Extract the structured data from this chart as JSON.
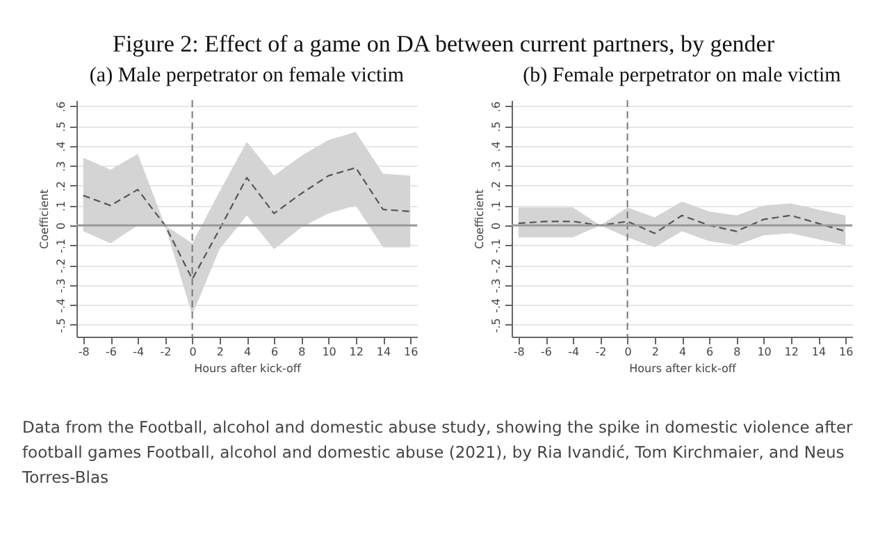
{
  "chart_data": [
    {
      "type": "line",
      "title": "(a) Male perpetrator on female victim",
      "xlabel": "Hours after kick-off",
      "ylabel": "Coefficient",
      "annotations": [
        "Figure 2: Effect of a game on DA between current partners, by gender",
        "Data from the Football, alcohol and domestic abuse study, showing the spike in domestic violence after football games Football, alcohol and domestic abuse (2021), by Ria Ivandić, Tom Kirchmaier, and Neus Torres-Blas"
      ],
      "x": [
        -8,
        -6,
        -4,
        -2,
        0,
        2,
        4,
        6,
        8,
        10,
        12,
        14,
        16
      ],
      "series": [
        {
          "color": "#555555",
          "values": [
            0.15,
            0.1,
            0.18,
            0,
            -0.27,
            -0.02,
            0.24,
            0.06,
            0.16,
            0.25,
            0.29,
            0.08,
            0.07
          ],
          "lower": [
            -0.03,
            -0.09,
            0,
            0,
            -0.45,
            -0.12,
            0.05,
            -0.12,
            -0.01,
            0.06,
            0.1,
            -0.11,
            -0.11
          ],
          "upper": [
            0.34,
            0.28,
            0.36,
            0,
            -0.09,
            0.17,
            0.42,
            0.25,
            0.35,
            0.43,
            0.47,
            0.26,
            0.25
          ]
        }
      ],
      "xlim": [
        -8.5,
        16.5
      ],
      "ylim": [
        -0.56,
        0.63
      ],
      "xticks": [
        -8,
        -6,
        -4,
        -2,
        0,
        2,
        4,
        6,
        8,
        10,
        12,
        14,
        16
      ],
      "yticks": [
        {
          "value": -0.5,
          "label": "-.5"
        },
        {
          "value": -0.4,
          "label": "-.4"
        },
        {
          "value": -0.3,
          "label": "-.3"
        },
        {
          "value": -0.2,
          "label": "-.2"
        },
        {
          "value": -0.1,
          "label": "-.1"
        },
        0,
        {
          "value": 0.1,
          "label": ".1"
        },
        {
          "value": 0.2,
          "label": ".2"
        },
        {
          "value": 0.3,
          "label": ".3"
        },
        {
          "value": 0.4,
          "label": ".4"
        },
        {
          "value": 0.5,
          "label": ".5"
        },
        {
          "value": 0.6,
          "label": ".6"
        }
      ],
      "ref_lines": [
        {
          "axis": "x",
          "value": 0,
          "line_style": "dashed",
          "color": "#777777"
        },
        {
          "axis": "y",
          "value": 0,
          "line_style": "solid",
          "color": "#999999"
        }
      ],
      "grid": "y",
      "line_style": "dashed"
    },
    {
      "type": "line",
      "title": "(b) Female perpetrator on male victim",
      "xlabel": "Hours after kick-off",
      "ylabel": "Coefficient",
      "x": [
        -8,
        -6,
        -4,
        -2,
        0,
        2,
        4,
        6,
        8,
        10,
        12,
        14,
        16
      ],
      "series": [
        {
          "color": "#555555",
          "values": [
            0.01,
            0.02,
            0.02,
            0,
            0.02,
            -0.04,
            0.05,
            0,
            -0.03,
            0.03,
            0.05,
            0.01,
            -0.03
          ],
          "lower": [
            -0.06,
            -0.06,
            -0.06,
            0,
            -0.06,
            -0.11,
            -0.03,
            -0.08,
            -0.1,
            -0.05,
            -0.04,
            -0.07,
            -0.1
          ],
          "upper": [
            0.09,
            0.09,
            0.09,
            0,
            0.09,
            0.04,
            0.12,
            0.07,
            0.05,
            0.1,
            0.11,
            0.08,
            0.05
          ]
        }
      ],
      "xlim": [
        -8.5,
        16.5
      ],
      "ylim": [
        -0.56,
        0.63
      ],
      "xticks": [
        -8,
        -6,
        -4,
        -2,
        0,
        2,
        4,
        6,
        8,
        10,
        12,
        14,
        16
      ],
      "yticks": [
        {
          "value": -0.5,
          "label": "-.5"
        },
        {
          "value": -0.4,
          "label": "-.4"
        },
        {
          "value": -0.3,
          "label": "-.3"
        },
        {
          "value": -0.2,
          "label": "-.2"
        },
        {
          "value": -0.1,
          "label": "-.1"
        },
        0,
        {
          "value": 0.1,
          "label": ".1"
        },
        {
          "value": 0.2,
          "label": ".2"
        },
        {
          "value": 0.3,
          "label": ".3"
        },
        {
          "value": 0.4,
          "label": ".4"
        },
        {
          "value": 0.5,
          "label": ".5"
        },
        {
          "value": 0.6,
          "label": ".6"
        }
      ],
      "ref_lines": [
        {
          "axis": "x",
          "value": 0,
          "line_style": "dashed",
          "color": "#777777"
        },
        {
          "axis": "y",
          "value": 0,
          "line_style": "solid",
          "color": "#999999"
        }
      ],
      "grid": "y",
      "line_style": "dashed"
    }
  ]
}
